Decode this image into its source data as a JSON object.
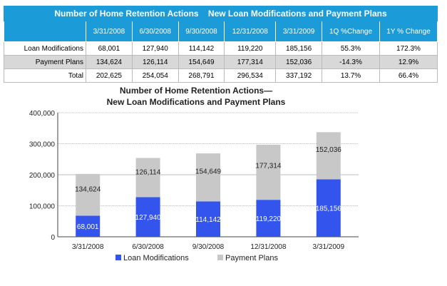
{
  "table": {
    "title": "Number of Home Retention Actions    New Loan Modifications and Payment Plans",
    "headers": [
      "",
      "3/31/2008",
      "6/30/2008",
      "9/30/2008",
      "12/31/2008",
      "3/31/2009",
      "1Q %Change",
      "1Y % Change"
    ],
    "rows": [
      [
        "Loan Modifications",
        "68,001",
        "127,940",
        "114,142",
        "119,220",
        "185,156",
        "55.3%",
        "172.3%"
      ],
      [
        "Payment Plans",
        "134,624",
        "126,114",
        "154,649",
        "177,314",
        "152,036",
        "-14.3%",
        "12.9%"
      ],
      [
        "Total",
        "202,625",
        "254,054",
        "268,791",
        "296,534",
        "337,192",
        "13.7%",
        "66.4%"
      ]
    ]
  },
  "chart_data": {
    "type": "bar",
    "stacked": true,
    "title": [
      "Number of Home Retention Actions—",
      "New Loan Modifications and Payment Plans"
    ],
    "categories": [
      "3/31/2008",
      "6/30/2008",
      "9/30/2008",
      "12/31/2008",
      "3/31/2009"
    ],
    "series": [
      {
        "name": "Loan Modifications",
        "values": [
          68001,
          127940,
          114142,
          119220,
          185156
        ],
        "labels": [
          "68,001",
          "127,940",
          "114,142",
          "119,220",
          "185,156"
        ],
        "color": "#3355ee"
      },
      {
        "name": "Payment Plans",
        "values": [
          134624,
          126114,
          154649,
          177314,
          152036
        ],
        "labels": [
          "134,624",
          "126,114",
          "154,649",
          "177,314",
          "152,036"
        ],
        "color": "#c8c8c8"
      }
    ],
    "ylim": [
      0,
      400000
    ],
    "yticks": [
      0,
      100000,
      200000,
      300000,
      400000
    ],
    "ytick_labels": [
      "0",
      "100,000",
      "200,000",
      "300,000",
      "400,000"
    ],
    "grid": true,
    "legend": "bottom"
  }
}
